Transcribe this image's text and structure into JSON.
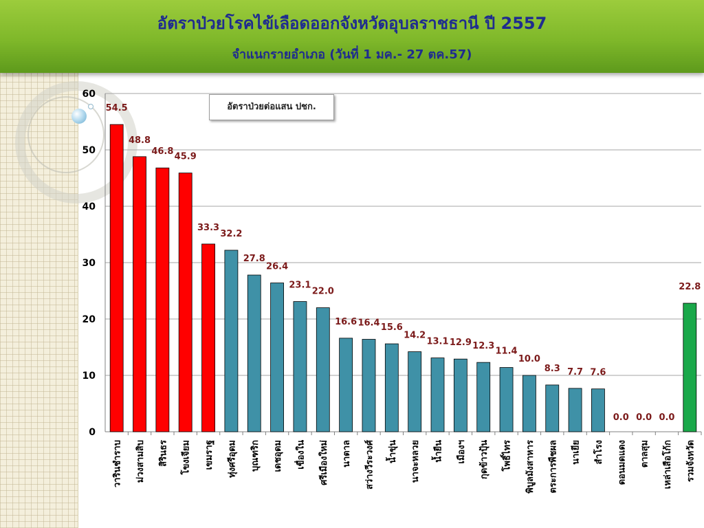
{
  "header": {
    "title": "อัตราป่วยโรคไข้เลือดออกจังหวัดอุบลราชธานี ปี 2557",
    "subtitle": "จำแนกรายอำเภอ (วันที่ 1 มค.- 27 ตค.57)"
  },
  "colors": {
    "red": "#ff0000",
    "teal": "#3f91a7",
    "green": "#1aa84a",
    "value_label": "#7b1a1a",
    "title": "#1f2c8f"
  },
  "chart_data": {
    "type": "bar",
    "title": "อัตราป่วยโรคไข้เลือดออกจังหวัดอุบลราชธานี ปี 2557",
    "subtitle": "จำแนกรายอำเภอ (วันที่ 1 มค.- 27 ตค.57)",
    "annotation": "อัตราป่วยต่อแสน ปชก.",
    "ylim": [
      0,
      60
    ],
    "yticks": [
      0,
      10,
      20,
      30,
      40,
      50,
      60
    ],
    "grid": true,
    "categories": [
      "วารินชำราบ",
      "ม่วงสามสิบ",
      "สิรินธร",
      "โขงเจียม",
      "เขมราฐ",
      "ทุ่งศรีอุดม",
      "บุณฑริก",
      "เดชอุดม",
      "เขื่องใน",
      "ศรีเมืองใหม่",
      "นาตาล",
      "สว่างวีระวงศ์",
      "น้ำขุ่น",
      "นาจะหลวย",
      "น้ำยืน",
      "เมืองฯ",
      "กุดข้าวปุ้น",
      "โพธิ์ไทร",
      "พิบูลมังสาหาร",
      "ตระการพืชผล",
      "นาเยีย",
      "สำโรง",
      "ดอนมดแดง",
      "ตาลสุม",
      "เหล่าเสือโก้ก",
      "รวมจังหวัด"
    ],
    "values": [
      54.5,
      48.8,
      46.8,
      45.9,
      33.3,
      32.2,
      27.8,
      26.4,
      23.1,
      22.0,
      16.6,
      16.4,
      15.6,
      14.2,
      13.1,
      12.9,
      12.3,
      11.4,
      10.0,
      8.3,
      7.7,
      7.6,
      0.0,
      0.0,
      0.0,
      22.8
    ],
    "value_labels": [
      "54.5",
      "48.8",
      "46.8",
      "45.9",
      "33.3",
      "32.2",
      "27.8",
      "26.4",
      "23.1",
      "22.0",
      "16.6",
      "16.4",
      "15.6",
      "14.2",
      "13.1",
      "12.9",
      "12.3",
      "11.4",
      "10.0",
      "8.3",
      "7.7",
      "7.6",
      "0.0",
      "0.0",
      "0.0",
      "22.8"
    ],
    "bar_colors": [
      "#ff0000",
      "#ff0000",
      "#ff0000",
      "#ff0000",
      "#ff0000",
      "#3f91a7",
      "#3f91a7",
      "#3f91a7",
      "#3f91a7",
      "#3f91a7",
      "#3f91a7",
      "#3f91a7",
      "#3f91a7",
      "#3f91a7",
      "#3f91a7",
      "#3f91a7",
      "#3f91a7",
      "#3f91a7",
      "#3f91a7",
      "#3f91a7",
      "#3f91a7",
      "#3f91a7",
      "#3f91a7",
      "#3f91a7",
      "#3f91a7",
      "#1aa84a"
    ]
  }
}
